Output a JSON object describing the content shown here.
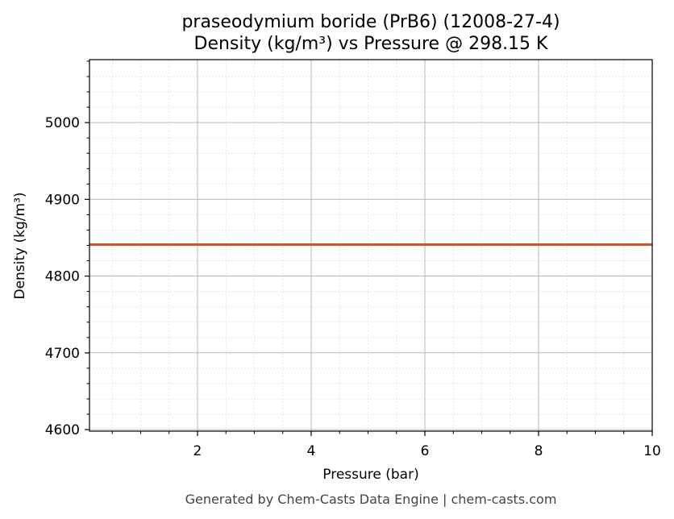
{
  "chart_data": {
    "type": "line",
    "title": "praseodymium boride (PrB6) (12008-27-4)",
    "subtitle": "Density (kg/m³) vs Pressure @ 298.15 K",
    "xlabel": "Pressure (bar)",
    "ylabel": "Density (kg/m³)",
    "xlim": [
      0.1,
      10
    ],
    "ylim": [
      4598,
      5082
    ],
    "x_ticks": [
      2,
      4,
      6,
      8,
      10
    ],
    "y_ticks": [
      4600,
      4700,
      4800,
      4900,
      5000
    ],
    "x_tick_labels": [
      "2",
      "4",
      "6",
      "8",
      "10"
    ],
    "y_tick_labels": [
      "4600",
      "4700",
      "4800",
      "4900",
      "5000"
    ],
    "grid": true,
    "minor_grid": true,
    "legend": "none",
    "series": [
      {
        "color": "#c8552b",
        "x": [
          0.1,
          1,
          2,
          3,
          4,
          5,
          6,
          7,
          8,
          9,
          10
        ],
        "y": [
          4841,
          4841,
          4841,
          4841,
          4841,
          4841,
          4841,
          4841,
          4841,
          4841,
          4841
        ]
      }
    ]
  },
  "footer": "Generated by Chem-Casts Data Engine | chem-casts.com"
}
